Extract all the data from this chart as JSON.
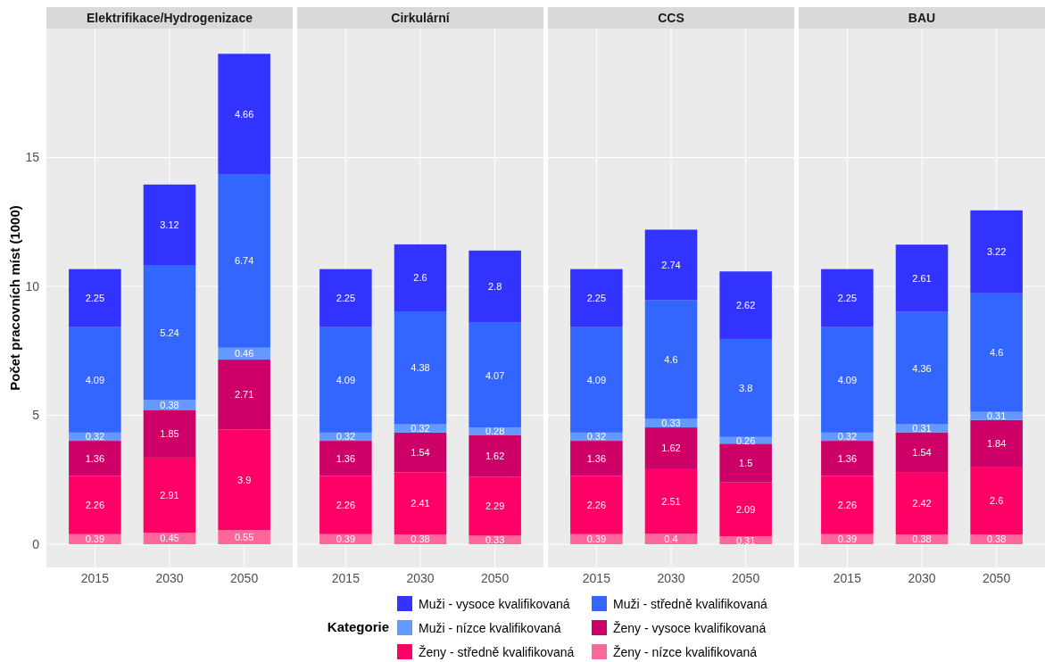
{
  "chart_data": [
    {
      "type": "bar",
      "stacked": true,
      "title": "Elektrifikace/Hydrogenizace",
      "ylabel": "Počet pracovních míst (1000)",
      "categories": [
        "2015",
        "2030",
        "2050"
      ],
      "ylim": [
        -0.9,
        20
      ],
      "yticks": [
        0,
        5,
        10,
        15
      ],
      "grid": true,
      "data_labels": true,
      "legend": "bottom",
      "legend_title": "Kategorie",
      "series": [
        {
          "name": "Ženy - nízce kvalifikovaná",
          "color": "#ff6699",
          "values": [
            0.39,
            0.45,
            0.55
          ]
        },
        {
          "name": "Ženy - středně kvalifikovaná",
          "color": "#ff0066",
          "values": [
            2.26,
            2.91,
            3.9
          ]
        },
        {
          "name": "Ženy - vysoce kvalifikovaná",
          "color": "#cc0066",
          "values": [
            1.36,
            1.85,
            2.71
          ]
        },
        {
          "name": "Muži - nízce kvalifikovaná",
          "color": "#6699ff",
          "values": [
            0.32,
            0.38,
            0.46
          ]
        },
        {
          "name": "Muži - středně kvalifikovaná",
          "color": "#3366ff",
          "values": [
            4.09,
            5.24,
            6.74
          ]
        },
        {
          "name": "Muži - vysoce kvalifikovaná",
          "color": "#3333ff",
          "values": [
            2.25,
            3.12,
            4.66
          ]
        }
      ]
    },
    {
      "type": "bar",
      "stacked": true,
      "title": "Cirkulární",
      "categories": [
        "2015",
        "2030",
        "2050"
      ],
      "ylim": [
        -0.9,
        20
      ],
      "yticks": [
        0,
        5,
        10,
        15
      ],
      "tick_labels": "x",
      "grid": true,
      "data_labels": true,
      "series": [
        {
          "color": "#ff6699",
          "values": [
            0.39,
            0.38,
            0.33
          ]
        },
        {
          "color": "#ff0066",
          "values": [
            2.26,
            2.41,
            2.29
          ]
        },
        {
          "color": "#cc0066",
          "values": [
            1.36,
            1.54,
            1.62
          ]
        },
        {
          "color": "#6699ff",
          "values": [
            0.32,
            0.32,
            0.28
          ]
        },
        {
          "color": "#3366ff",
          "values": [
            4.09,
            4.38,
            4.07
          ]
        },
        {
          "color": "#3333ff",
          "values": [
            2.25,
            2.6,
            2.8
          ]
        }
      ]
    },
    {
      "type": "bar",
      "stacked": true,
      "title": "CCS",
      "categories": [
        "2015",
        "2030",
        "2050"
      ],
      "ylim": [
        -0.9,
        20
      ],
      "yticks": [
        0,
        5,
        10,
        15
      ],
      "tick_labels": "x",
      "grid": true,
      "data_labels": true,
      "series": [
        {
          "color": "#ff6699",
          "values": [
            0.39,
            0.4,
            0.31
          ]
        },
        {
          "color": "#ff0066",
          "values": [
            2.26,
            2.51,
            2.09
          ]
        },
        {
          "color": "#cc0066",
          "values": [
            1.36,
            1.62,
            1.5
          ]
        },
        {
          "color": "#6699ff",
          "values": [
            0.32,
            0.33,
            0.26
          ]
        },
        {
          "color": "#3366ff",
          "values": [
            4.09,
            4.6,
            3.8
          ]
        },
        {
          "color": "#3333ff",
          "values": [
            2.25,
            2.74,
            2.62
          ]
        }
      ]
    },
    {
      "type": "bar",
      "stacked": true,
      "title": "BAU",
      "categories": [
        "2015",
        "2030",
        "2050"
      ],
      "ylim": [
        -0.9,
        20
      ],
      "yticks": [
        0,
        5,
        10,
        15
      ],
      "tick_labels": "x",
      "grid": true,
      "data_labels": true,
      "series": [
        {
          "color": "#ff6699",
          "values": [
            0.39,
            0.38,
            0.38
          ]
        },
        {
          "color": "#ff0066",
          "values": [
            2.26,
            2.42,
            2.6
          ]
        },
        {
          "color": "#cc0066",
          "values": [
            1.36,
            1.54,
            1.84
          ]
        },
        {
          "color": "#6699ff",
          "values": [
            0.32,
            0.31,
            0.31
          ]
        },
        {
          "color": "#3366ff",
          "values": [
            4.09,
            4.36,
            4.6
          ]
        },
        {
          "color": "#3333ff",
          "values": [
            2.25,
            2.61,
            3.22
          ]
        }
      ]
    }
  ]
}
